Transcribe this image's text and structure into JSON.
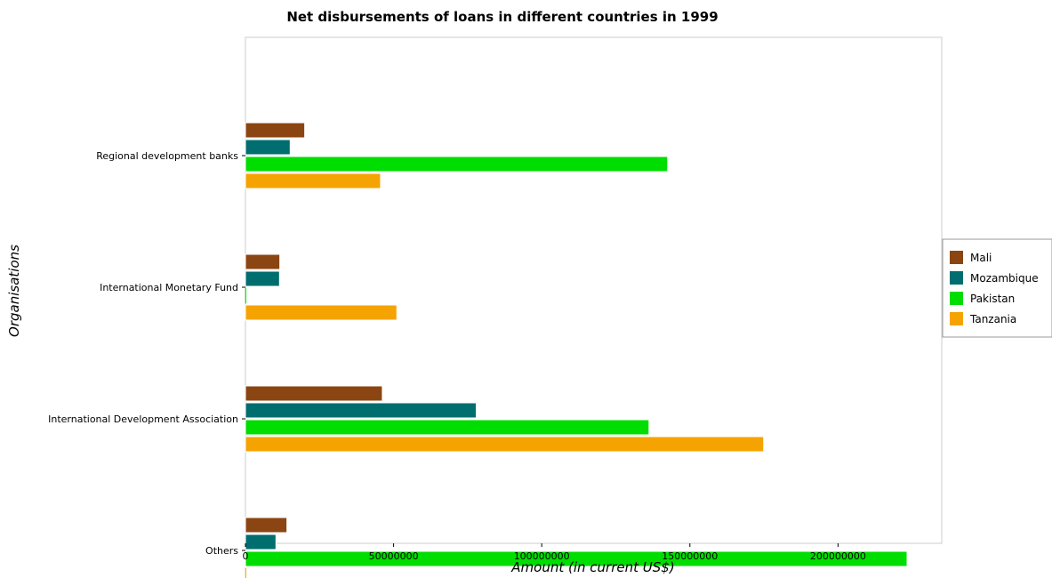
{
  "chart_data": {
    "type": "bar",
    "orientation": "horizontal",
    "title": "Net disbursements of loans in different countries in 1999",
    "xlabel": "Amount (in current US$)",
    "ylabel": "Organisations",
    "xlim": [
      0,
      235000000
    ],
    "xticks": [
      0,
      50000000,
      100000000,
      150000000,
      200000000
    ],
    "xtick_labels": [
      "0",
      "50000000",
      "100000000",
      "150000000",
      "200000000"
    ],
    "categories": [
      "Regional development banks",
      "International Monetary Fund",
      "International Development Association",
      "Others"
    ],
    "series": [
      {
        "name": "Mali",
        "color": "#8B4513",
        "values": [
          20000000,
          11600000,
          46200000,
          14000000
        ]
      },
      {
        "name": "Mozambique",
        "color": "#006D6F",
        "values": [
          15100000,
          11500000,
          77900000,
          10300000
        ]
      },
      {
        "name": "Pakistan",
        "color": "#00DD00",
        "values": [
          142500000,
          0,
          136200000,
          223300000
        ]
      },
      {
        "name": "Tanzania",
        "color": "#F5A300",
        "values": [
          45600000,
          51100000,
          174900000,
          0
        ]
      }
    ],
    "grid": false,
    "legend_position": "right"
  }
}
